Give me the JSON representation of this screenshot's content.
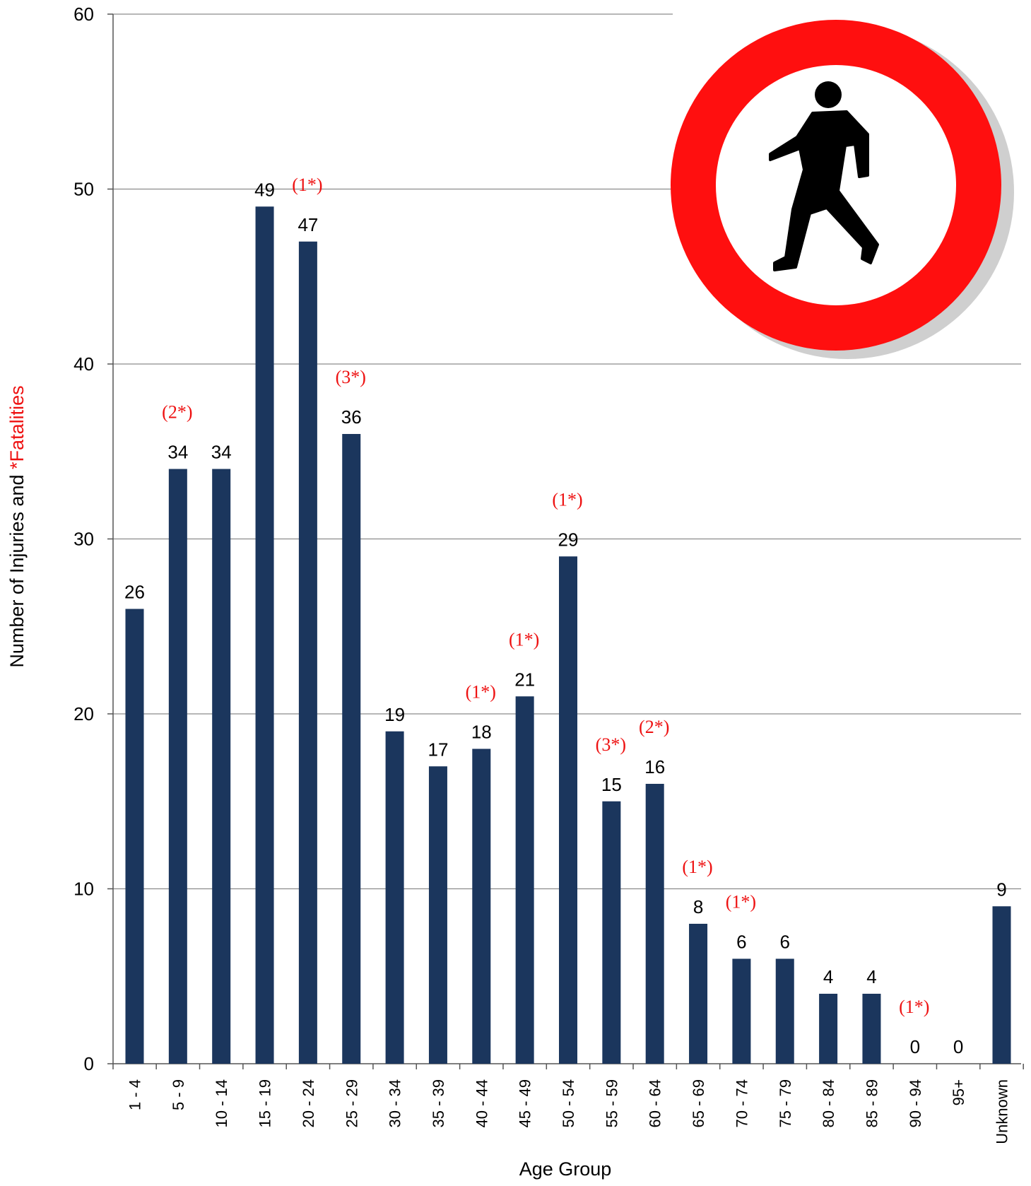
{
  "chart_data": {
    "type": "bar",
    "xlabel": "Age Group",
    "ylabel_parts": [
      "Number of Injuries and ",
      "*Fatalities"
    ],
    "ylim": [
      0,
      60
    ],
    "yticks": [
      0,
      10,
      20,
      30,
      40,
      50,
      60
    ],
    "grid": true,
    "categories": [
      "1 - 4",
      "5 - 9",
      "10 - 14",
      "15 - 19",
      "20 - 24",
      "25 - 29",
      "30 - 34",
      "35 - 39",
      "40 - 44",
      "45 - 49",
      "50 - 54",
      "55 - 59",
      "60 - 64",
      "65 - 69",
      "70 - 74",
      "75 - 79",
      "80 - 84",
      "85 - 89",
      "90 - 94",
      "95+",
      "Unknown"
    ],
    "series": [
      {
        "values": [
          26,
          34,
          34,
          49,
          47,
          36,
          19,
          17,
          18,
          21,
          29,
          15,
          16,
          8,
          6,
          6,
          4,
          4,
          0,
          0,
          9
        ]
      }
    ],
    "fatalities": [
      {
        "category": "5 - 9",
        "label": "(2*)"
      },
      {
        "category": "20 - 24",
        "label": "(1*)"
      },
      {
        "category": "25 - 29",
        "label": "(3*)"
      },
      {
        "category": "40 - 44",
        "label": "(1*)"
      },
      {
        "category": "45 - 49",
        "label": "(1*)"
      },
      {
        "category": "50 - 54",
        "label": "(1*)"
      },
      {
        "category": "55 - 59",
        "label": "(3*)"
      },
      {
        "category": "60 - 64",
        "label": "(2*)"
      },
      {
        "category": "65 - 69",
        "label": "(1*)"
      },
      {
        "category": "70 - 74",
        "label": "(1*)"
      },
      {
        "category": "90 - 94",
        "label": "(1*)"
      }
    ]
  },
  "colors": {
    "bar": "#1b365d",
    "fatality_text": "#ee1111",
    "gridline": "#8c8c8c",
    "sign_ring": "#ff0f0f",
    "sign_shadow": "#cfcfcf",
    "pedestrian": "#000000"
  },
  "sign": {
    "icon": "pedestrian-prohibited-sign-icon"
  }
}
